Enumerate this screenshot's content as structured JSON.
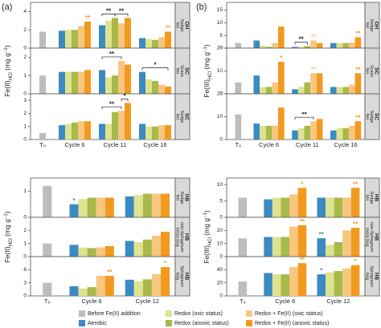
{
  "legend": [
    {
      "name": "Before Fe(II) addition",
      "color": "#bdbdbd"
    },
    {
      "name": "Aerobic",
      "color": "#3b8bc2"
    },
    {
      "name": "Redox (oxic status)",
      "color": "#dfe38f"
    },
    {
      "name": "Redox (anoxic status)",
      "color": "#a9b94a"
    },
    {
      "name": "Redox + Fe(II) (oxic status)",
      "color": "#f7c77f"
    },
    {
      "name": "Redox + Fe(II) (anoxic status)",
      "color": "#f29a1f"
    }
  ],
  "chart_data": [
    {
      "type": "bar",
      "panel_label": "(a)",
      "y_label": [
        "Fe(II)",
        "HCl",
        " (mg g",
        "−1",
        ")"
      ],
      "categories": [
        "T₀",
        "Cycle 6",
        "Cycle 11",
        "Cycle 16"
      ],
      "panels": [
        {
          "strip": [
            "OH",
            "Sedge",
            "fen"
          ],
          "ylim": [
            0,
            5
          ],
          "yticks": [
            0,
            2,
            4
          ],
          "values": [
            [
              1.8,
              null,
              null,
              null
            ],
            [
              null,
              1.9,
              2.5,
              1.1
            ],
            [
              null,
              2.0,
              3.0,
              1.0
            ],
            [
              null,
              2.0,
              3.3,
              0.9
            ],
            [
              null,
              2.4,
              2.7,
              1.2
            ],
            [
              null,
              2.9,
              3.3,
              1.8
            ]
          ],
          "annotations": [
            {
              "text": "**",
              "series": 5,
              "category": 1
            },
            {
              "text": "**",
              "series": 5,
              "category": 3
            }
          ],
          "brackets": [
            {
              "text": "**",
              "category": 2,
              "from": 1,
              "to": 3
            },
            {
              "text": "**",
              "category": 2,
              "from": 3,
              "to": 5
            }
          ]
        },
        {
          "strip": [
            "SC",
            "Grass",
            "fen"
          ],
          "ylim": [
            0,
            2.5
          ],
          "yticks": [
            0,
            1,
            2
          ],
          "values": [
            [
              1.0,
              null,
              null,
              null
            ],
            [
              null,
              1.2,
              1.3,
              1.2
            ],
            [
              null,
              1.2,
              0.9,
              0.8
            ],
            [
              null,
              1.2,
              1.0,
              0.7
            ],
            [
              null,
              1.2,
              1.8,
              0.5
            ],
            [
              null,
              1.3,
              1.6,
              0.4
            ]
          ],
          "annotations": [],
          "brackets": [
            {
              "text": "**",
              "category": 2,
              "from": 1,
              "to": 4
            },
            {
              "text": "*",
              "category": 3,
              "from": 1,
              "to": 5
            }
          ]
        },
        {
          "strip": [
            "SC",
            "Sedge",
            "fen"
          ],
          "ylim": [
            0,
            3.5
          ],
          "yticks": [
            0,
            1,
            2,
            3
          ],
          "values": [
            [
              0.5,
              null,
              null,
              null
            ],
            [
              null,
              1.1,
              1.2,
              1.2
            ],
            [
              null,
              1.2,
              1.2,
              1.0
            ],
            [
              null,
              1.3,
              2.1,
              1.0
            ],
            [
              null,
              1.4,
              2.2,
              1.1
            ],
            [
              null,
              1.4,
              2.8,
              1.1
            ]
          ],
          "annotations": [],
          "brackets": [
            {
              "text": "**",
              "category": 2,
              "from": 1,
              "to": 4
            },
            {
              "text": "*",
              "category": 2,
              "from": 4,
              "to": 5
            }
          ]
        }
      ]
    },
    {
      "type": "bar",
      "y_label": [
        "Fe(II)",
        "HCl",
        " (mg g",
        "−1",
        ")"
      ],
      "categories": [
        "T₀",
        "Cycle 6",
        "Cycle 12"
      ],
      "panels": [
        {
          "strip": [
            "HB",
            "Sedge",
            "fen"
          ],
          "ylim": [
            0,
            1.5
          ],
          "yticks": [
            0,
            1
          ],
          "values": [
            [
              1.2,
              null,
              null
            ],
            [
              null,
              0.5,
              0.8
            ],
            [
              null,
              0.7,
              0.85
            ],
            [
              null,
              0.75,
              0.9
            ],
            [
              null,
              0.75,
              0.9
            ],
            [
              null,
              0.75,
              0.9
            ]
          ],
          "annotations": [
            {
              "text": "*",
              "series": 1,
              "category": 1
            }
          ],
          "brackets": []
        },
        {
          "strip": [
            "HB",
            "non-Sphagnum",
            "moss bog"
          ],
          "ylim": [
            0,
            3
          ],
          "yticks": [
            0,
            1,
            2
          ],
          "values": [
            [
              1.0,
              null,
              null
            ],
            [
              null,
              0.9,
              1.2
            ],
            [
              null,
              0.7,
              1.1
            ],
            [
              null,
              0.65,
              1.3
            ],
            [
              null,
              0.7,
              1.6
            ],
            [
              null,
              0.8,
              1.9
            ]
          ],
          "annotations": [],
          "brackets": []
        },
        {
          "strip": [
            "HB",
            "Sphagnum",
            "bog"
          ],
          "ylim": [
            0,
            9
          ],
          "yticks": [
            0,
            3,
            6
          ],
          "values": [
            [
              3.0,
              null,
              null
            ],
            [
              null,
              2.2,
              3.7
            ],
            [
              null,
              1.7,
              3.4
            ],
            [
              null,
              2.0,
              3.8
            ],
            [
              null,
              4.6,
              5.0
            ],
            [
              null,
              4.6,
              6.6
            ]
          ],
          "annotations": [
            {
              "text": "**",
              "series": 5,
              "category": 1
            },
            {
              "text": "*",
              "series": 5,
              "category": 2
            }
          ],
          "brackets": []
        }
      ]
    },
    {
      "type": "bar",
      "panel_label": "(b)",
      "y_label": [
        "Fe(III)",
        "HCl",
        " (mg g",
        "−1",
        ")"
      ],
      "categories": [
        "T₀",
        "Cycle 6",
        "Cycle 11",
        "Cycle 16"
      ],
      "panels": [
        {
          "strip": [
            "OH",
            "Sedge",
            "fen"
          ],
          "ylim": [
            0,
            18
          ],
          "yticks": [
            0,
            5,
            10,
            15
          ],
          "values": [
            [
              2,
              null,
              null,
              null
            ],
            [
              null,
              3,
              0.5,
              2
            ],
            [
              null,
              1,
              0.5,
              2
            ],
            [
              null,
              0.5,
              0.8,
              2
            ],
            [
              null,
              2,
              3,
              2.2
            ],
            [
              null,
              8.5,
              2,
              4.3
            ]
          ],
          "annotations": [
            {
              "text": "**",
              "series": 4,
              "category": 2
            },
            {
              "text": "**",
              "series": 5,
              "category": 3
            }
          ],
          "brackets": [
            {
              "text": "**",
              "category": 2,
              "from": 1,
              "to": 3
            }
          ]
        },
        {
          "strip": [
            "SC",
            "Grass",
            "fen"
          ],
          "ylim": [
            0,
            20
          ],
          "yticks": [
            0,
            10,
            20
          ],
          "values": [
            [
              5,
              null,
              null,
              null
            ],
            [
              null,
              8,
              2,
              3
            ],
            [
              null,
              3,
              3,
              3
            ],
            [
              null,
              3,
              5,
              3
            ],
            [
              null,
              5,
              9,
              4
            ],
            [
              null,
              14,
              9,
              9
            ]
          ],
          "annotations": [
            {
              "text": "*",
              "series": 5,
              "category": 1
            },
            {
              "text": "**",
              "series": 4,
              "category": 2
            },
            {
              "text": "**",
              "series": 5,
              "category": 3
            }
          ],
          "brackets": []
        },
        {
          "strip": [
            "SC",
            "Sedge",
            "fen"
          ],
          "ylim": [
            0,
            20
          ],
          "yticks": [
            0,
            10,
            20
          ],
          "values": [
            [
              11,
              null,
              null,
              null
            ],
            [
              null,
              7,
              4,
              4
            ],
            [
              null,
              6,
              5,
              5
            ],
            [
              null,
              6,
              6,
              5
            ],
            [
              null,
              6,
              8,
              6
            ],
            [
              null,
              14,
              9,
              8
            ]
          ],
          "annotations": [
            {
              "text": "**",
              "series": 5,
              "category": 3
            }
          ],
          "brackets": [
            {
              "text": "**",
              "category": 2,
              "from": 1,
              "to": 4
            }
          ]
        }
      ]
    },
    {
      "type": "bar",
      "y_label": [
        "Fe(III)",
        "HCl",
        " (mg g",
        "−1",
        ")"
      ],
      "categories": [
        "T₀",
        "Cycle 6",
        "Cycle 12"
      ],
      "panels": [
        {
          "strip": [
            "HB",
            "Sedge",
            "fen"
          ],
          "ylim": [
            0,
            12
          ],
          "yticks": [
            0,
            5,
            10
          ],
          "values": [
            [
              6,
              null,
              null
            ],
            [
              null,
              5.5,
              6
            ],
            [
              null,
              6,
              6
            ],
            [
              null,
              6,
              6
            ],
            [
              null,
              7,
              6
            ],
            [
              null,
              9,
              9
            ]
          ],
          "annotations": [
            {
              "text": "*",
              "series": 5,
              "category": 1
            },
            {
              "text": "**",
              "series": 5,
              "category": 2
            }
          ],
          "brackets": []
        },
        {
          "strip": [
            "HB",
            "non-Sphagnum",
            "moss bog"
          ],
          "ylim": [
            0,
            30
          ],
          "yticks": [
            0,
            10,
            20
          ],
          "values": [
            [
              14,
              null,
              null
            ],
            [
              null,
              15,
              14
            ],
            [
              null,
              15,
              9
            ],
            [
              null,
              15,
              11
            ],
            [
              null,
              23,
              20
            ],
            [
              null,
              24,
              22
            ]
          ],
          "annotations": [
            {
              "text": "**",
              "series": 5,
              "category": 1
            },
            {
              "text": "**",
              "series": 1,
              "category": 2
            },
            {
              "text": "**",
              "series": 5,
              "category": 2
            }
          ],
          "brackets": []
        },
        {
          "strip": [
            "HB",
            "Sphagnum",
            "bog"
          ],
          "ylim": [
            0,
            60
          ],
          "yticks": [
            0,
            20,
            40
          ],
          "values": [
            [
              22,
              null,
              null
            ],
            [
              null,
              35,
              33
            ],
            [
              null,
              33,
              36
            ],
            [
              null,
              33,
              38
            ],
            [
              null,
              44,
              42
            ],
            [
              null,
              50,
              47
            ]
          ],
          "annotations": [
            {
              "text": "**",
              "series": 5,
              "category": 1
            },
            {
              "text": "*",
              "series": 1,
              "category": 2
            },
            {
              "text": "*",
              "series": 5,
              "category": 2
            }
          ],
          "brackets": []
        }
      ]
    }
  ]
}
